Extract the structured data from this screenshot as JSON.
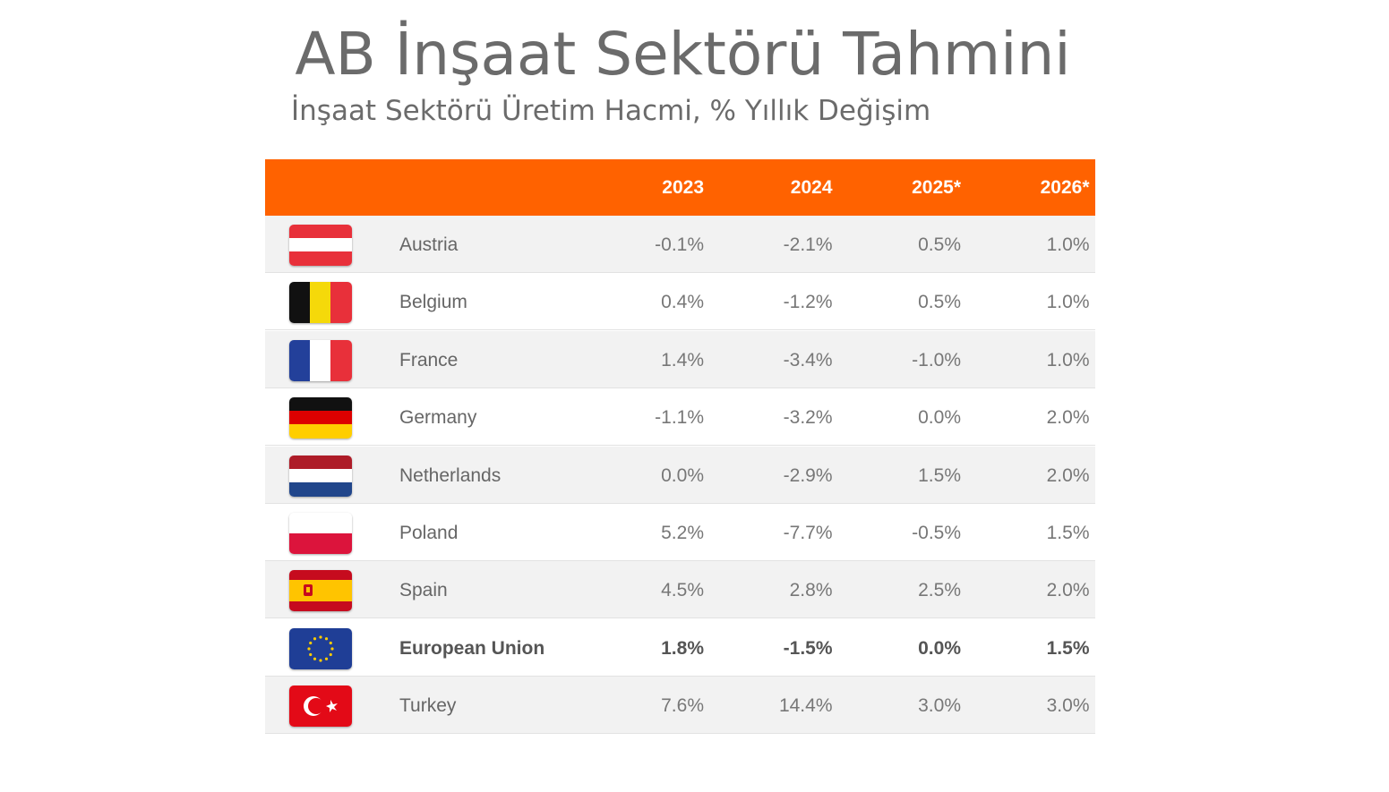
{
  "header": {
    "title": "AB İnşaat Sektörü Tahmini",
    "subtitle": "İnşaat Sektörü Üretim Hacmi, % Yıllık Değişim"
  },
  "table": {
    "columns": [
      "2023",
      "2024",
      "2025*",
      "2026*"
    ],
    "rows": [
      {
        "country": "Austria",
        "values": [
          "-0.1%",
          "-2.1%",
          "0.5%",
          "1.0%"
        ],
        "bold": false
      },
      {
        "country": "Belgium",
        "values": [
          "0.4%",
          "-1.2%",
          "0.5%",
          "1.0%"
        ],
        "bold": false
      },
      {
        "country": "France",
        "values": [
          "1.4%",
          "-3.4%",
          "-1.0%",
          "1.0%"
        ],
        "bold": false
      },
      {
        "country": "Germany",
        "values": [
          "-1.1%",
          "-3.2%",
          "0.0%",
          "2.0%"
        ],
        "bold": false
      },
      {
        "country": "Netherlands",
        "values": [
          "0.0%",
          "-2.9%",
          "1.5%",
          "2.0%"
        ],
        "bold": false
      },
      {
        "country": "Poland",
        "values": [
          "5.2%",
          "-7.7%",
          "-0.5%",
          "1.5%"
        ],
        "bold": false
      },
      {
        "country": "Spain",
        "values": [
          "4.5%",
          "2.8%",
          "2.5%",
          "2.0%"
        ],
        "bold": false
      },
      {
        "country": "European Union",
        "values": [
          "1.8%",
          "-1.5%",
          "0.0%",
          "1.5%"
        ],
        "bold": true
      },
      {
        "country": "Turkey",
        "values": [
          "7.6%",
          "14.4%",
          "3.0%",
          "3.0%"
        ],
        "bold": false
      }
    ]
  }
}
